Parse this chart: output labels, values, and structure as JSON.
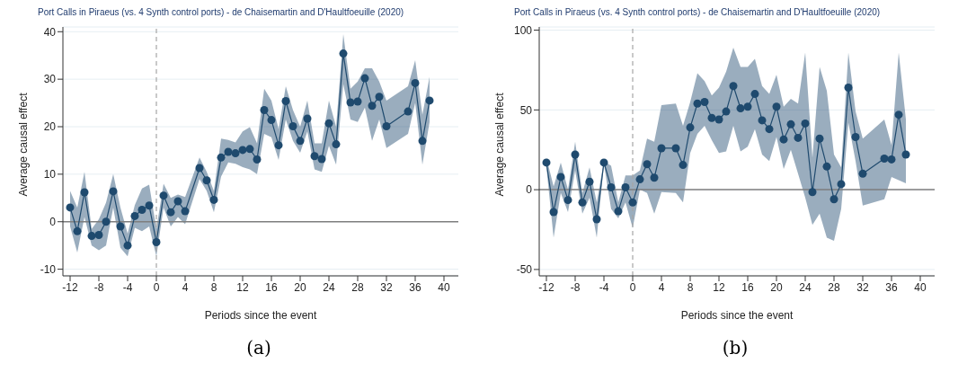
{
  "chart_data": [
    {
      "type": "line",
      "title": "Port Calls in Piraeus (vs. 4 Synth control ports) - de Chaisemartin and D'Haultfoeuille (2020)",
      "xlabel": "Periods since the event",
      "ylabel": "Average causal effect",
      "annotations": [
        "(a)"
      ],
      "xlim": [
        -13,
        42
      ],
      "xticks": [
        -12,
        -8,
        -4,
        0,
        4,
        8,
        12,
        16,
        20,
        24,
        28,
        32,
        36,
        40
      ],
      "ylim": [
        -11.4,
        41
      ],
      "yticks": [
        -10,
        0,
        10,
        20,
        30,
        40
      ],
      "grid": "y",
      "marker": "circle",
      "line_style": "solid",
      "ref_lines": [
        {
          "axis": "y",
          "value": 0,
          "color": "#7f7f7f",
          "line_style": "solid"
        },
        {
          "axis": "x",
          "value": 0,
          "color": "#a6a6a6",
          "line_style": "dashed"
        }
      ],
      "series": [
        {
          "color": "#1f4a6e",
          "x": [
            -12,
            -11,
            -10,
            -9,
            -8,
            -7,
            -6,
            -5,
            -4,
            -3,
            -2,
            -1,
            0,
            1,
            2,
            3,
            4,
            6,
            7,
            8,
            9,
            10,
            11,
            12,
            13,
            14,
            15,
            16,
            17,
            18,
            19,
            20,
            21,
            22,
            23,
            24,
            25,
            26,
            27,
            28,
            29,
            30,
            31,
            32,
            35,
            36,
            37,
            38
          ],
          "values": [
            3,
            -2,
            6.2,
            -3,
            -2.8,
            0,
            6.4,
            -1,
            -5,
            1.2,
            2.5,
            3.4,
            -4.3,
            5.5,
            2,
            4.3,
            2.2,
            11.3,
            8.7,
            4.6,
            13.5,
            14.7,
            14.4,
            15.1,
            15.3,
            13.1,
            23.5,
            21.4,
            16.1,
            25.4,
            20.1,
            17,
            21.7,
            13.8,
            13.2,
            20.7,
            16.3,
            35.4,
            25.1,
            25.3,
            30.2,
            24.4,
            26.3,
            20.1,
            23.2,
            29.2,
            17,
            25.5
          ],
          "lower": [
            -1,
            -6.5,
            1,
            -5,
            -6,
            -5,
            3,
            -5.5,
            -7.3,
            -1.3,
            -2,
            -1,
            -7.3,
            3,
            -1,
            1,
            -0.5,
            9,
            6.5,
            2,
            9.5,
            12.5,
            12.2,
            11.5,
            11,
            10,
            18.5,
            17.8,
            13,
            21.5,
            17,
            14.5,
            19,
            11,
            10.5,
            16,
            12,
            29,
            21.5,
            21,
            24,
            17,
            21.5,
            15.5,
            18.5,
            25,
            12,
            21
          ],
          "upper": [
            6.5,
            3,
            10.5,
            -1.5,
            0.5,
            4,
            10,
            3,
            -2.5,
            3.5,
            7,
            7.8,
            -1.5,
            8,
            5,
            5.7,
            5.2,
            13.5,
            10.5,
            6.5,
            17.5,
            17.2,
            16.7,
            19,
            19.9,
            16.5,
            28,
            25.5,
            19.5,
            28.5,
            23.5,
            20,
            25.5,
            16.5,
            16.5,
            25.5,
            20,
            39.5,
            28,
            29.5,
            32.3,
            32.3,
            29.5,
            25.5,
            28.5,
            34,
            22.5,
            30.5
          ]
        }
      ]
    },
    {
      "type": "line",
      "title": "Port Calls in Piraeus (vs. 4 Synth control ports) - de Chaisemartin and D'Haultfoeuille (2020)",
      "xlabel": "Periods since the event",
      "ylabel": "Average causal effect",
      "annotations": [
        "(b)"
      ],
      "xlim": [
        -13,
        42
      ],
      "xticks": [
        -12,
        -8,
        -4,
        0,
        4,
        8,
        12,
        16,
        20,
        24,
        28,
        32,
        36,
        40
      ],
      "ylim": [
        -54,
        102
      ],
      "yticks": [
        -50,
        0,
        50,
        100
      ],
      "grid": "y",
      "marker": "circle",
      "line_style": "solid",
      "ref_lines": [
        {
          "axis": "y",
          "value": 0,
          "color": "#7f7f7f",
          "line_style": "solid"
        },
        {
          "axis": "x",
          "value": 0,
          "color": "#a6a6a6",
          "line_style": "dashed"
        }
      ],
      "series": [
        {
          "color": "#1f4a6e",
          "x": [
            -12,
            -11,
            -10,
            -9,
            -8,
            -7,
            -6,
            -5,
            -4,
            -3,
            -2,
            -1,
            0,
            1,
            2,
            3,
            4,
            6,
            7,
            8,
            9,
            10,
            11,
            12,
            13,
            14,
            15,
            16,
            17,
            18,
            19,
            20,
            21,
            22,
            23,
            24,
            25,
            26,
            27,
            28,
            29,
            30,
            31,
            32,
            35,
            36,
            37,
            38
          ],
          "values": [
            17,
            -14,
            8,
            -6.5,
            22,
            -8,
            5,
            -18.5,
            17,
            1.5,
            -13.5,
            1.5,
            -8,
            6.5,
            16,
            7.5,
            26,
            26,
            15.5,
            39,
            54,
            55,
            45,
            44,
            49,
            65,
            51,
            52,
            60,
            43.5,
            38,
            52,
            31.5,
            41,
            32.5,
            41.5,
            -1.5,
            32,
            14.5,
            -6,
            3.5,
            64,
            33,
            10,
            19.5,
            19,
            47,
            22
          ],
          "lower": [
            14,
            -30,
            -2,
            -14,
            12,
            -15,
            -5,
            -30,
            16,
            -12,
            -18,
            -8,
            -24,
            0,
            -2,
            -15,
            -1.5,
            -2,
            -8,
            23,
            35,
            40,
            31,
            23,
            24,
            40,
            24,
            27,
            38,
            22,
            18,
            33,
            13,
            25,
            10,
            -5,
            -22,
            -15,
            -30,
            -32,
            -12,
            42,
            18,
            -10,
            -6,
            8,
            6,
            4
          ],
          "upper": [
            20,
            2,
            17,
            0,
            30,
            -2,
            14,
            -8,
            18,
            15,
            -8,
            9,
            9,
            12,
            32,
            30,
            53,
            54,
            40,
            55,
            73,
            68,
            59,
            64,
            74,
            89,
            77,
            77,
            82,
            65,
            60,
            72,
            52,
            57,
            54,
            86,
            20,
            77,
            62,
            22,
            14,
            86,
            49,
            32,
            44,
            28,
            86,
            44
          ]
        }
      ]
    }
  ]
}
